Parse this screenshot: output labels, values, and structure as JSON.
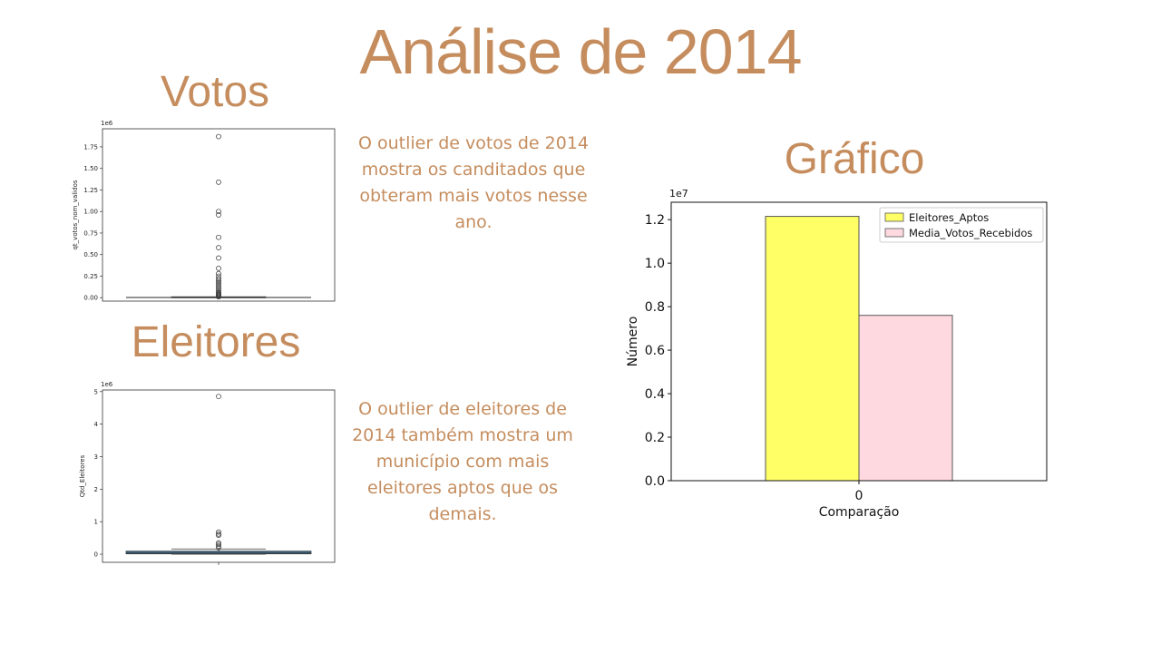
{
  "header": {
    "title": "Análise de 2014"
  },
  "sections": {
    "votos": {
      "heading": "Votos",
      "description": "O outlier de votos de 2014 mostra os canditados que obteram mais votos nesse ano."
    },
    "eleitores": {
      "heading": "Eleitores",
      "description": "O outlier de eleitores de 2014  também mostra um município com mais eleitores aptos que os demais."
    },
    "grafico": {
      "heading": "Gráfico"
    }
  },
  "colors": {
    "accent": "#c58d5e",
    "eleitores_aptos": "#ffff66",
    "media_votos": "#ffd9e0",
    "box_fill": "#3b6e8f"
  },
  "chart_data": [
    {
      "type": "box",
      "ylabel": "qt_votos_nom_validos",
      "offset_label": "1e6",
      "yticks": [
        0.0,
        0.25,
        0.5,
        0.75,
        1.0,
        1.25,
        1.5,
        1.75
      ],
      "yticklabels": [
        "0.00",
        "0.25",
        "0.50",
        "0.75",
        "1.00",
        "1.25",
        "1.50",
        "1.75"
      ],
      "ylim": [
        -0.04,
        1.96
      ],
      "box": {
        "q1": 0.0,
        "median": 0.0,
        "q3": 0.002,
        "whisker_low": 0.0,
        "whisker_high": 0.005
      },
      "outliers": [
        1.87,
        1.34,
        1.0,
        0.96,
        0.7,
        0.58,
        0.46,
        0.34,
        0.28,
        0.25,
        0.22,
        0.2,
        0.18,
        0.16,
        0.14,
        0.12,
        0.1,
        0.08,
        0.06,
        0.05,
        0.04,
        0.03,
        0.02,
        0.01
      ]
    },
    {
      "type": "box",
      "ylabel": "Qtd_Eleitores",
      "offset_label": "1e6",
      "yticks": [
        0,
        1,
        2,
        3,
        4,
        5
      ],
      "yticklabels": [
        "0",
        "1",
        "2",
        "3",
        "4",
        "5"
      ],
      "ylim": [
        -0.25,
        5.05
      ],
      "xticks": [
        ""
      ],
      "box": {
        "q1": 0.01,
        "median": 0.03,
        "q3": 0.08,
        "whisker_low": 0.0,
        "whisker_high": 0.16
      },
      "outliers": [
        4.85,
        0.68,
        0.62,
        0.58,
        0.35,
        0.3,
        0.25,
        0.2
      ]
    },
    {
      "type": "bar",
      "categories": [
        "0"
      ],
      "xlabel": "Comparação",
      "ylabel": "Número",
      "offset_label": "1e7",
      "ylim": [
        0,
        1.28
      ],
      "yticks": [
        0.0,
        0.2,
        0.4,
        0.6,
        0.8,
        1.0,
        1.2
      ],
      "yticklabels": [
        "0.0",
        "0.2",
        "0.4",
        "0.6",
        "0.8",
        "1.0",
        "1.2"
      ],
      "series": [
        {
          "name": "Eleitores_Aptos",
          "values": [
            1.215
          ]
        },
        {
          "name": "Media_Votos_Recebidos",
          "values": [
            0.76
          ]
        }
      ],
      "legend": "top-right",
      "grid": false
    }
  ]
}
